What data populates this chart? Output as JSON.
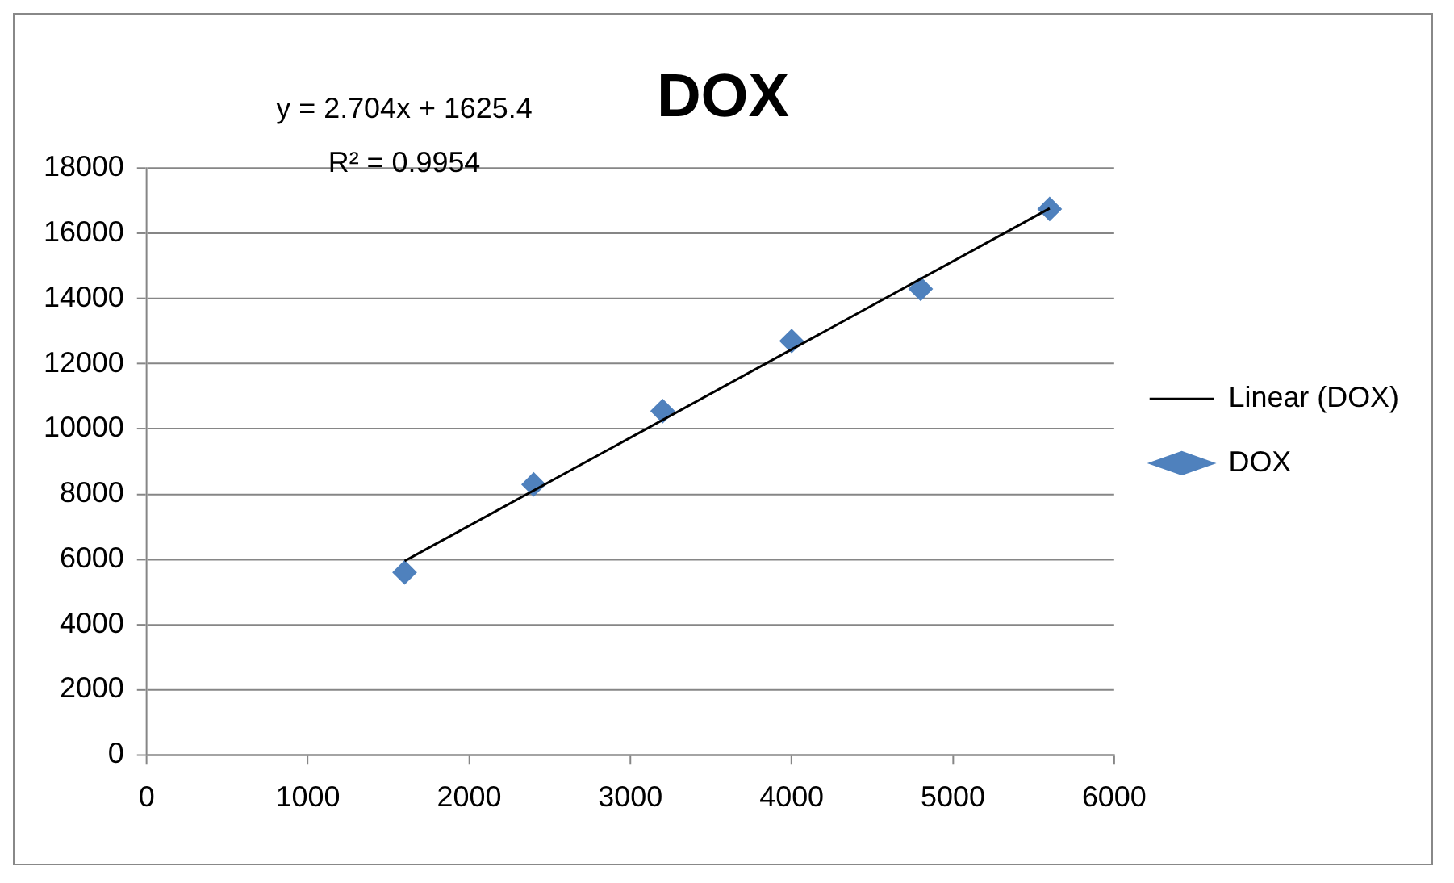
{
  "chart_data": {
    "type": "scatter",
    "title": "DOX",
    "annotations": [
      "y = 2.704x + 1625.4",
      "R² = 0.9954"
    ],
    "series": [
      {
        "name": "DOX",
        "type": "scatter",
        "color": "#4f81bd",
        "marker": "diamond",
        "x": [
          1600,
          2400,
          3200,
          4000,
          4800,
          5600
        ],
        "values": [
          5600,
          8300,
          10550,
          12700,
          14300,
          16750
        ]
      },
      {
        "name": "Linear (DOX)",
        "type": "line",
        "color": "#000000",
        "marker": "none",
        "line_style": "solid",
        "x": [
          1600,
          5600
        ],
        "values": [
          5950,
          16770
        ]
      }
    ],
    "xlim": [
      0,
      6000
    ],
    "xticks": [
      0,
      1000,
      2000,
      3000,
      4000,
      5000,
      6000
    ],
    "ylim": [
      0,
      18000
    ],
    "yticks": [
      0,
      2000,
      4000,
      6000,
      8000,
      10000,
      12000,
      14000,
      16000,
      18000
    ],
    "grid": "y",
    "legend": "right"
  }
}
